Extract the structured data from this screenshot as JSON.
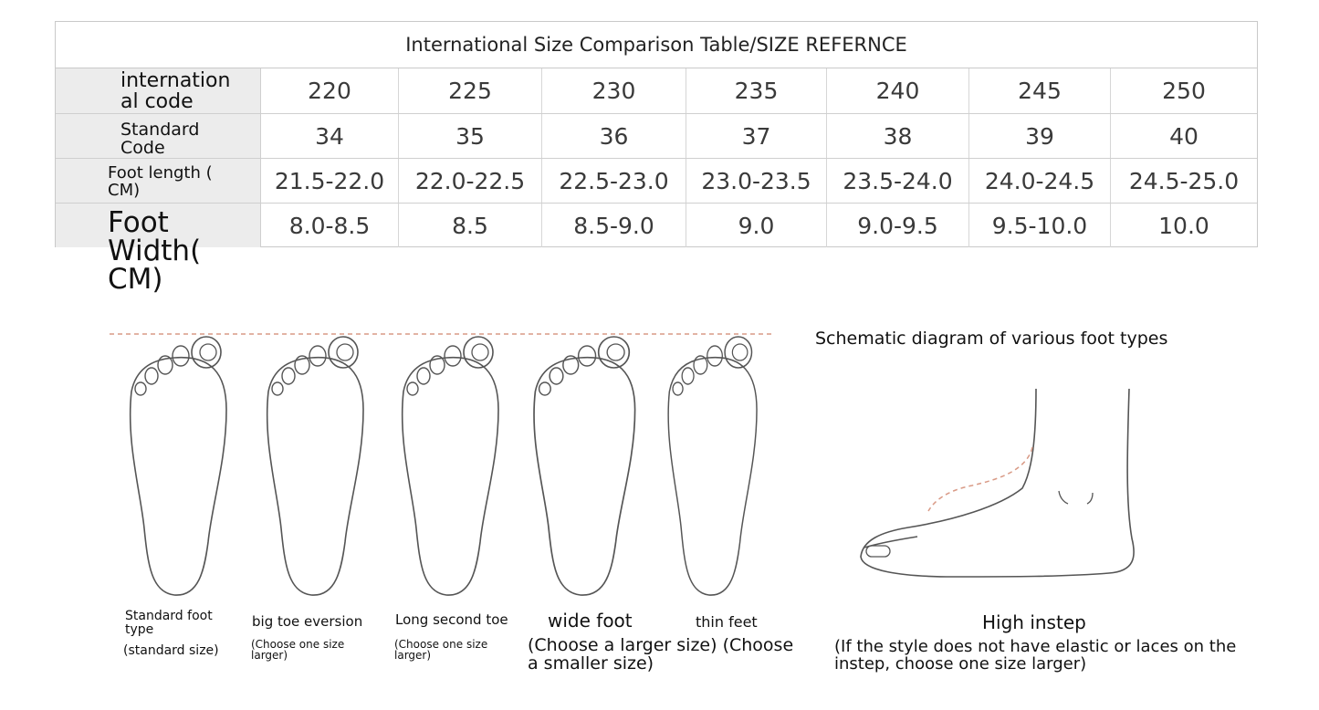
{
  "table": {
    "title": "International Size Comparison Table/SIZE REFERNCE",
    "rows": [
      {
        "label": "internation al code",
        "values": [
          "220",
          "225",
          "230",
          "235",
          "240",
          "245",
          "250"
        ]
      },
      {
        "label": "Standard Code",
        "values": [
          "34",
          "35",
          "36",
          "37",
          "38",
          "39",
          "40"
        ]
      },
      {
        "label": "Foot length ( CM)",
        "values": [
          "21.5-22.0",
          "22.0-22.5",
          "22.5-23.0",
          "23.0-23.5",
          "23.5-24.0",
          "24.0-24.5",
          "24.5-25.0"
        ]
      },
      {
        "label": "Foot Width( CM)",
        "values": [
          "8.0-8.5",
          "8.5",
          "8.5-9.0",
          "9.0",
          "9.0-9.5",
          "9.5-10.0",
          "10.0"
        ]
      }
    ]
  },
  "foot_types": {
    "standard": {
      "label": "Standard foot type",
      "note": "(standard size)"
    },
    "big_toe": {
      "label": "big toe eversion",
      "note": "(Choose one size larger)"
    },
    "long_second": {
      "label": "Long second toe",
      "note": "(Choose one size larger)"
    },
    "wide": {
      "label": "wide foot",
      "note": "(Choose a larger size) (Choose a smaller size)"
    },
    "thin": {
      "label": "thin feet"
    }
  },
  "schematic": {
    "title": "Schematic diagram of various foot types",
    "instep_title": "High instep",
    "instep_note": "(If the style does not have elastic or laces on the instep, choose one size larger)"
  },
  "colors": {
    "outline": "#555555",
    "guide_dash": "#d99a86",
    "header_bg": "#ececec",
    "border": "#c9c9c9"
  }
}
